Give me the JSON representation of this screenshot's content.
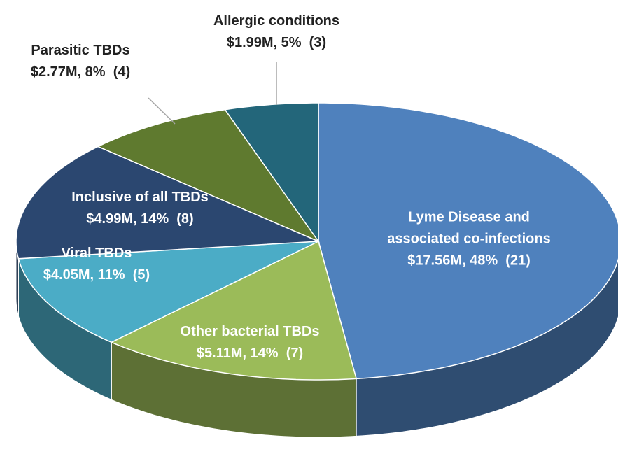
{
  "chart_data": {
    "type": "pie",
    "categories": [
      "Lyme Disease and\nassociated co-infections",
      "Other bacterial TBDs",
      "Viral TBDs",
      "Inclusive of all TBDs",
      "Parasitic TBDs",
      "Allergic conditions"
    ],
    "values": [
      48,
      14,
      11,
      14,
      8,
      5
    ],
    "value_labels": [
      "$17.56M, 48%  (21)",
      "$5.11M, 14%  (7)",
      "$4.05M, 11%  (5)",
      "$4.99M, 14%  (8)",
      "$2.77M, 8%  (4)",
      "$1.99M, 5%  (3)"
    ],
    "colors": [
      "#4f81bd",
      "#9bbb59",
      "#4bacc6",
      "#2b4770",
      "#5f7a2f",
      "#23667a"
    ]
  }
}
